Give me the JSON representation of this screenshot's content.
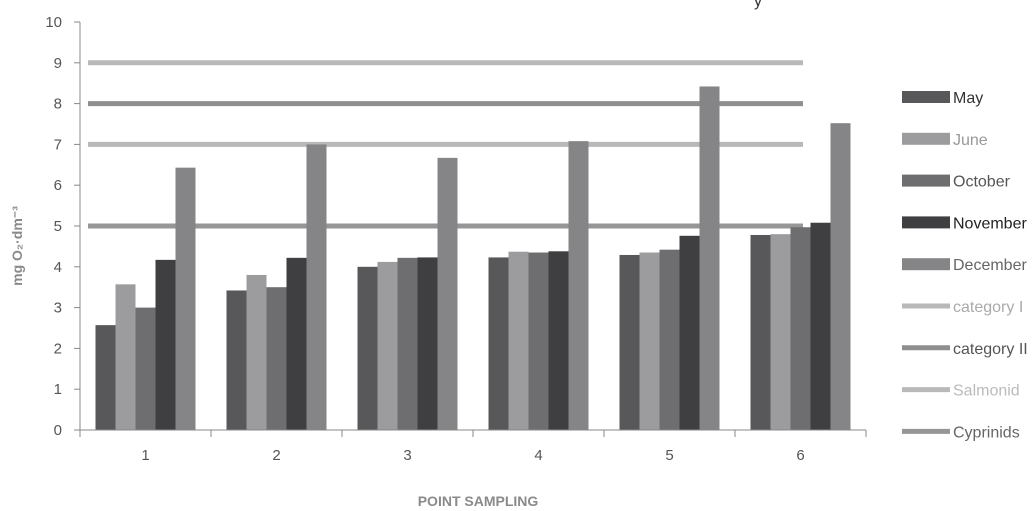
{
  "chart_data": {
    "type": "bar",
    "title_fragment": "y",
    "xlabel": "POINT SAMPLING",
    "ylabel": "mg O₂·dm⁻³",
    "categories": [
      "1",
      "2",
      "3",
      "4",
      "5",
      "6"
    ],
    "ylim": [
      0,
      10
    ],
    "yticks": [
      "0",
      "1",
      "2",
      "3",
      "4",
      "5",
      "6",
      "7",
      "8",
      "9",
      "10"
    ],
    "grid": false,
    "legend_position": "right",
    "series": [
      {
        "name": "May",
        "color": "#58585a",
        "values": [
          2.57,
          3.42,
          4.0,
          4.23,
          4.29,
          4.78
        ]
      },
      {
        "name": "June",
        "color": "#9c9c9e",
        "values": [
          3.57,
          3.8,
          4.12,
          4.37,
          4.35,
          4.8
        ]
      },
      {
        "name": "October",
        "color": "#6e6e70",
        "values": [
          3.0,
          3.5,
          4.22,
          4.35,
          4.42,
          4.97
        ]
      },
      {
        "name": "November",
        "color": "#3f3f41",
        "values": [
          4.17,
          4.22,
          4.23,
          4.38,
          4.76,
          5.08
        ]
      },
      {
        "name": "December",
        "color": "#858587",
        "values": [
          6.43,
          7.0,
          6.67,
          7.08,
          8.42,
          7.52
        ]
      }
    ],
    "reference_lines": [
      {
        "name": "category I",
        "value": 9,
        "color": "#b9b9b9"
      },
      {
        "name": "category II",
        "value": 8,
        "color": "#8f8f8f"
      },
      {
        "name": "Salmonid",
        "value": 7,
        "color": "#b9b9b9"
      },
      {
        "name": "Cyprinids",
        "value": 5,
        "color": "#969696"
      }
    ],
    "legend_text_colors": {
      "May": "#333333",
      "June": "#999999",
      "October": "#555555",
      "November": "#222222",
      "December": "#666666",
      "category I": "#aaaaaa",
      "category II": "#555555",
      "Salmonid": "#bbbbbb",
      "Cyprinids": "#666666"
    }
  }
}
